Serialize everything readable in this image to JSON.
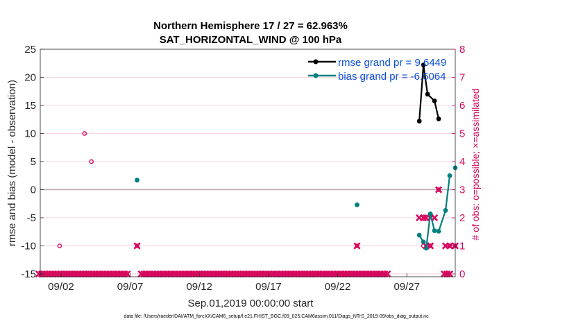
{
  "chart_data": {
    "type": "line",
    "title": "Northern Hemisphere 17 / 27 = 62.963%",
    "subtitle": "SAT_HORIZONTAL_WIND @ 100 hPa",
    "xlabel": "Sep.01,2019 00:00:00 start",
    "ylabel": "rmse and bias (model - observation)",
    "y2label": "# of obs: o=possible; ×=assimilated",
    "xlim": [
      0.5,
      30.5
    ],
    "ylim": [
      -15.5,
      25
    ],
    "y2lim": [
      -0.1,
      8
    ],
    "x_ticks": [
      {
        "day": 2,
        "label": "09/02"
      },
      {
        "day": 7,
        "label": "09/07"
      },
      {
        "day": 12,
        "label": "09/12"
      },
      {
        "day": 17,
        "label": "09/17"
      },
      {
        "day": 22,
        "label": "09/22"
      },
      {
        "day": 27,
        "label": "09/27"
      }
    ],
    "y_ticks": [
      "-15",
      "-10",
      "-5",
      "0",
      "5",
      "10",
      "15",
      "20",
      "25"
    ],
    "y2_ticks": [
      "0",
      "1",
      "2",
      "3",
      "4",
      "5",
      "6",
      "7",
      "8"
    ],
    "zero_line": 0,
    "legend": {
      "position": "top-right",
      "entries": [
        {
          "name": "rmse grand pr = 9.6449",
          "color": "#000000"
        },
        {
          "name": "bias grand pr = -6.6064",
          "color": "#00807f"
        }
      ]
    },
    "series": [
      {
        "name": "rmse",
        "color": "#000000",
        "points": [
          [
            27.9,
            12.2
          ],
          [
            28.2,
            22.2
          ],
          [
            28.5,
            17.0
          ],
          [
            29.0,
            15.8
          ],
          [
            29.3,
            12.6
          ]
        ]
      },
      {
        "name": "bias",
        "color": "#00807f",
        "points": [
          [
            27.9,
            -8.1
          ],
          [
            28.2,
            -9.3
          ],
          [
            28.4,
            -10.4
          ],
          [
            28.7,
            -4.3
          ],
          [
            29.0,
            -7.3
          ],
          [
            29.3,
            -7.4
          ],
          [
            29.8,
            -3.7
          ],
          [
            30.1,
            2.5
          ]
        ]
      },
      {
        "name": "bias_isolated",
        "color": "#00807f",
        "points": [
          [
            7.5,
            1.7
          ],
          [
            23.4,
            -2.7
          ],
          [
            30.5,
            3.9
          ]
        ]
      },
      {
        "name": "obs_possible",
        "color": "#d6085e",
        "points": [
          [
            1.9,
            1
          ],
          [
            3.7,
            5
          ],
          [
            4.2,
            4
          ],
          [
            7.5,
            1
          ],
          [
            23.4,
            1
          ],
          [
            28.2,
            1
          ],
          [
            28.7,
            1
          ],
          [
            29.3,
            3
          ],
          [
            30.1,
            1
          ],
          [
            30.5,
            1
          ]
        ]
      }
    ],
    "obs_assimilated": {
      "color": "#d6085e",
      "zero_runs": [
        [
          0.4,
          6.8
        ],
        [
          7.8,
          25.6
        ],
        [
          29.7,
          30.1
        ]
      ],
      "points": [
        [
          7.5,
          1
        ],
        [
          23.4,
          1
        ],
        [
          27.9,
          2
        ],
        [
          28.2,
          2
        ],
        [
          28.4,
          2
        ],
        [
          28.7,
          2
        ],
        [
          29.0,
          2
        ],
        [
          28.4,
          1
        ],
        [
          28.7,
          1
        ],
        [
          29.3,
          3
        ],
        [
          29.8,
          1
        ],
        [
          30.1,
          1
        ],
        [
          30.5,
          1
        ]
      ]
    },
    "footnote": "data file: /Users/raeder/DAI/ATM_forcXX/CAM6_setup/f.e21.FHIST_BGC.f09_025.CAM6assim.011/Diags_NTrS_2019-09/obs_diag_output.nc"
  }
}
